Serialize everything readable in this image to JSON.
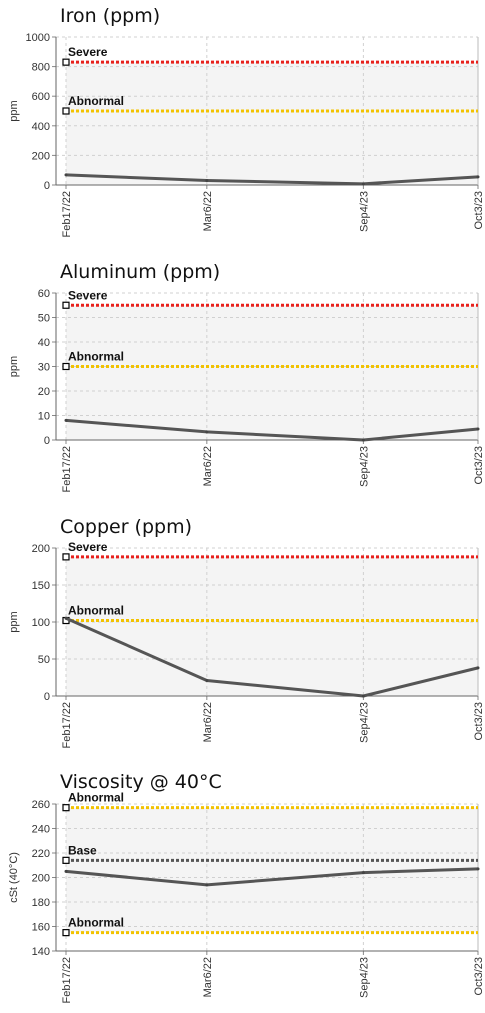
{
  "chart_data": [
    {
      "type": "line",
      "title": "Iron (ppm)",
      "ylabel": "ppm",
      "x": [
        "Feb17/22",
        "Mar6/22",
        "Sep4/23",
        "Oct3/23"
      ],
      "xpos": [
        0,
        0.3418,
        0.7218,
        1
      ],
      "series": [
        {
          "values": [
            68,
            30,
            8,
            55
          ]
        }
      ],
      "ylim": [
        0,
        1000
      ],
      "yticks": [
        0,
        200,
        400,
        600,
        800,
        1000
      ],
      "thresholds": [
        {
          "label": "Severe",
          "value": 830,
          "color": "#e8211c"
        },
        {
          "label": "Abnormal",
          "value": 500,
          "color": "#f2c200"
        }
      ],
      "band": [
        0,
        830
      ],
      "grid": true
    },
    {
      "type": "line",
      "title": "Aluminum (ppm)",
      "ylabel": "ppm",
      "x": [
        "Feb17/22",
        "Mar6/22",
        "Sep4/23",
        "Oct3/23"
      ],
      "xpos": [
        0,
        0.3418,
        0.7218,
        1
      ],
      "series": [
        {
          "values": [
            8,
            3.3,
            0,
            4.5
          ]
        }
      ],
      "ylim": [
        0,
        60
      ],
      "yticks": [
        0,
        10,
        20,
        30,
        40,
        50,
        60
      ],
      "thresholds": [
        {
          "label": "Severe",
          "value": 55,
          "color": "#e8211c"
        },
        {
          "label": "Abnormal",
          "value": 30,
          "color": "#f2c200"
        }
      ],
      "band": [
        0,
        55
      ],
      "grid": true
    },
    {
      "type": "line",
      "title": "Copper (ppm)",
      "ylabel": "ppm",
      "x": [
        "Feb17/22",
        "Mar6/22",
        "Sep4/23",
        "Oct3/23"
      ],
      "xpos": [
        0,
        0.3418,
        0.7218,
        1
      ],
      "series": [
        {
          "values": [
            105,
            21,
            0,
            38
          ]
        }
      ],
      "ylim": [
        0,
        200
      ],
      "yticks": [
        0,
        50,
        100,
        150,
        200
      ],
      "thresholds": [
        {
          "label": "Severe",
          "value": 188,
          "color": "#e8211c"
        },
        {
          "label": "Abnormal",
          "value": 102,
          "color": "#f2c200"
        }
      ],
      "band": [
        0,
        188
      ],
      "grid": true
    },
    {
      "type": "line",
      "title": "Viscosity @ 40°C",
      "ylabel": "cSt (40°C)",
      "x": [
        "Feb17/22",
        "Mar6/22",
        "Sep4/23",
        "Oct3/23"
      ],
      "xpos": [
        0,
        0.3418,
        0.7218,
        1
      ],
      "series": [
        {
          "values": [
            205,
            194,
            204,
            207
          ]
        }
      ],
      "ylim": [
        140,
        260
      ],
      "yticks": [
        140,
        160,
        180,
        200,
        220,
        240,
        260
      ],
      "thresholds": [
        {
          "label": "Abnormal",
          "value": 257,
          "color": "#f2c200"
        },
        {
          "label": "Base",
          "value": 214,
          "color": "#555555"
        },
        {
          "label": "Abnormal",
          "value": 155,
          "color": "#f2c200"
        }
      ],
      "band": [
        155,
        257
      ],
      "grid": true
    }
  ]
}
